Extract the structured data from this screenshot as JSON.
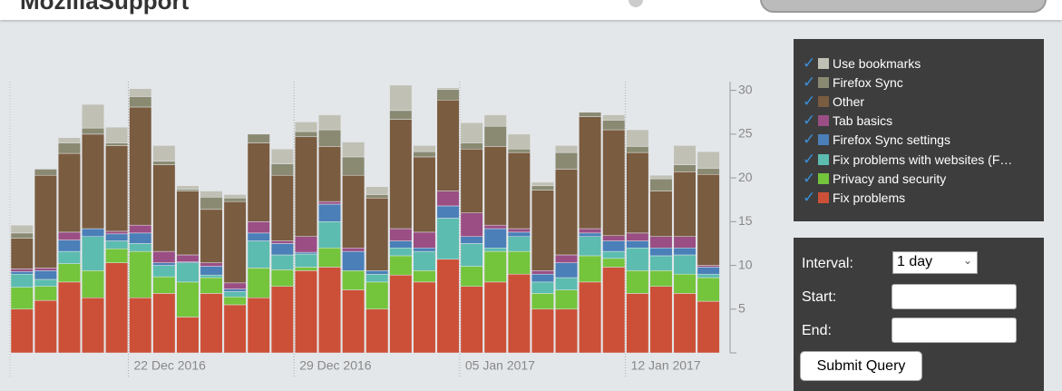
{
  "header": {
    "brand": "MozillaSupport"
  },
  "chart_data": {
    "type": "stacked-bar",
    "categories": [
      null,
      null,
      null,
      null,
      null,
      "22 Dec 2016",
      null,
      null,
      null,
      null,
      null,
      null,
      "29 Dec 2016",
      null,
      null,
      null,
      null,
      null,
      null,
      "05 Jan 2017",
      null,
      null,
      null,
      null,
      null,
      null,
      "12 Jan 2017",
      null,
      null,
      null
    ],
    "ylim": [
      0,
      31
    ],
    "yticks": [
      5,
      10,
      15,
      20,
      25,
      30
    ],
    "series": [
      {
        "name": "Fix problems",
        "color": "#cc5038",
        "values": [
          5,
          6,
          8.1,
          6.3,
          10.3,
          6.3,
          6.8,
          4.1,
          6.8,
          5.5,
          6.3,
          7.6,
          9.4,
          9.8,
          7.2,
          5,
          8.9,
          8.1,
          10.7,
          7.6,
          8.1,
          9,
          5,
          5,
          8.1,
          9.8,
          6.8,
          7.6,
          6.8,
          5.9
        ]
      },
      {
        "name": "Privacy and security",
        "color": "#74c43c",
        "values": [
          2.5,
          1.6,
          2.1,
          3.1,
          1.6,
          5.3,
          1.9,
          4,
          1.8,
          0.9,
          3.4,
          1.9,
          0.4,
          2.2,
          2.2,
          3.1,
          2.2,
          1.3,
          0,
          2.3,
          3.5,
          2.6,
          1.8,
          2.2,
          3,
          1,
          2.6,
          1.8,
          2.2,
          2.7
        ]
      },
      {
        "name": "Fix problems with websites (F…",
        "color": "#5cbcb0",
        "values": [
          1.5,
          0.8,
          1.4,
          3.9,
          0.9,
          0.9,
          1.3,
          2.2,
          0.3,
          0.6,
          3.1,
          1.7,
          1.5,
          3,
          0,
          0.9,
          0.9,
          2.2,
          4.7,
          2.6,
          0.4,
          1.7,
          1.3,
          1.4,
          2.2,
          0.8,
          2.6,
          1.7,
          2.2,
          0.4
        ]
      },
      {
        "name": "Firefox Sync settings",
        "color": "#4a7fb8",
        "values": [
          0.3,
          1,
          1.3,
          0.9,
          0.8,
          1.2,
          0.3,
          0.1,
          1,
          0.3,
          0.9,
          1.3,
          0.2,
          2,
          2.2,
          0.4,
          0.8,
          0.4,
          1.4,
          0.8,
          2.2,
          0.5,
          0.9,
          1.7,
          0.4,
          1.2,
          0.8,
          0.9,
          0.8,
          0.8
        ]
      },
      {
        "name": "Tab basics",
        "color": "#9a4e84",
        "values": [
          0.3,
          0.3,
          0.9,
          0,
          0.3,
          0.9,
          1.3,
          0.8,
          0.4,
          0.7,
          1.3,
          0.3,
          1.8,
          0.3,
          0.4,
          0,
          1.4,
          1.8,
          1.7,
          2.7,
          0.4,
          0.4,
          0.4,
          0.9,
          0.5,
          0.6,
          0.9,
          1.3,
          1.3,
          0.2
        ]
      },
      {
        "name": "Other",
        "color": "#7a5c40",
        "values": [
          3.5,
          10.6,
          9,
          10.8,
          9.8,
          13.5,
          9.9,
          7.3,
          6.1,
          9.3,
          9,
          7.5,
          11.4,
          6.3,
          8.3,
          8.3,
          12.5,
          8.6,
          10.4,
          7.3,
          9,
          8.7,
          9.2,
          9.8,
          12.8,
          12.1,
          9.2,
          5.2,
          7.4,
          10.4
        ]
      },
      {
        "name": "Firefox Sync",
        "color": "#8a8a72",
        "values": [
          0.6,
          0.7,
          1.2,
          0.7,
          0.3,
          1.2,
          0.4,
          0.2,
          1.4,
          0.4,
          1,
          1.3,
          0.6,
          1.9,
          2.1,
          0.4,
          1,
          0.6,
          1.2,
          0.7,
          2.3,
          0.4,
          0.5,
          1.9,
          0.5,
          1.1,
          0.7,
          1.4,
          0.8,
          0.7
        ]
      },
      {
        "name": "Use bookmarks",
        "color": "#c0c0b4",
        "values": [
          0.9,
          0,
          0.6,
          2.7,
          1.8,
          0.9,
          1.8,
          0.4,
          0.7,
          0.4,
          0,
          1.7,
          1.1,
          1.7,
          1.7,
          0.9,
          2.9,
          0.7,
          0.2,
          2.3,
          1.3,
          1.7,
          0.4,
          0.8,
          0,
          0.6,
          1.9,
          0.4,
          2.2,
          1.9
        ]
      }
    ]
  },
  "form": {
    "interval_label": "Interval:",
    "interval_value": "1 day",
    "start_label": "Start:",
    "end_label": "End:",
    "submit": "Submit Query"
  }
}
